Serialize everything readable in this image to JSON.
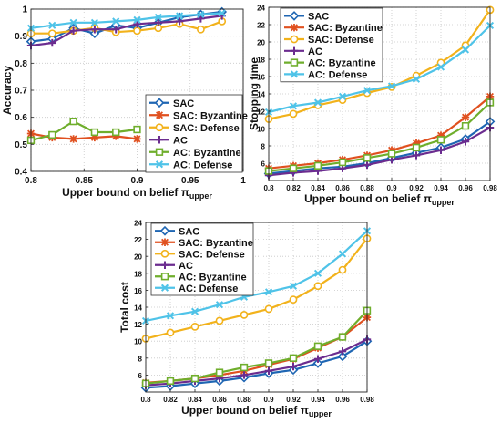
{
  "colors": {
    "SAC": "#1f66b3",
    "SAC: Byzantine": "#e0501f",
    "SAC: Defense": "#f2b21b",
    "AC": "#6b2c8f",
    "AC: Byzantine": "#6fae2c",
    "AC: Defense": "#4fc3e8"
  },
  "chart_data": [
    {
      "type": "line",
      "ylabel": "Accuracy",
      "xlabel": "Upper bound on belief π",
      "xlabel_sub": "upper",
      "xlim": [
        0.8,
        1.0
      ],
      "ylim": [
        0.4,
        1.0
      ],
      "xticks": [
        0.8,
        0.85,
        0.9,
        0.95,
        1.0
      ],
      "xtick_labels": [
        "0.8",
        "0.85",
        "0.9",
        "0.95",
        "1"
      ],
      "yticks": [
        0.4,
        0.5,
        0.6,
        0.7,
        0.8,
        0.9,
        1.0
      ],
      "ytick_labels": [
        "0.4",
        "0.5",
        "0.6",
        "0.7",
        "0.8",
        "0.9",
        "1"
      ],
      "grid": true,
      "legend": "bottom-right",
      "x": [
        0.8,
        0.82,
        0.84,
        0.86,
        0.88,
        0.9,
        0.92,
        0.94,
        0.96,
        0.98
      ],
      "series": [
        {
          "name": "SAC",
          "marker": "diamond",
          "values": [
            0.88,
            0.89,
            0.93,
            0.91,
            0.94,
            0.93,
            0.95,
            0.97,
            0.98,
            0.99
          ]
        },
        {
          "name": "SAC: Byzantine",
          "marker": "star",
          "values": [
            0.54,
            0.525,
            0.52,
            0.525,
            0.53,
            0.52,
            null,
            null,
            null,
            null
          ]
        },
        {
          "name": "SAC: Defense",
          "marker": "circle",
          "values": [
            0.91,
            0.91,
            0.92,
            0.93,
            0.915,
            0.92,
            0.93,
            0.945,
            0.925,
            0.955
          ]
        },
        {
          "name": "AC",
          "marker": "plus",
          "values": [
            0.865,
            0.875,
            0.92,
            0.925,
            0.925,
            0.945,
            0.95,
            0.955,
            0.965,
            0.975
          ]
        },
        {
          "name": "AC: Byzantine",
          "marker": "square",
          "values": [
            0.515,
            0.535,
            0.585,
            0.545,
            0.545,
            0.555,
            null,
            null,
            null,
            null
          ]
        },
        {
          "name": "AC: Defense",
          "marker": "x",
          "values": [
            0.93,
            0.94,
            0.95,
            0.95,
            0.955,
            0.96,
            0.97,
            0.975,
            0.98,
            0.985
          ]
        }
      ]
    },
    {
      "type": "line",
      "ylabel": "Stopping time",
      "xlabel": "Upper bound on belief π",
      "xlabel_sub": "upper",
      "xlim": [
        0.8,
        0.98
      ],
      "ylim": [
        4,
        24
      ],
      "xticks": [
        0.8,
        0.82,
        0.84,
        0.86,
        0.88,
        0.9,
        0.92,
        0.94,
        0.96,
        0.98
      ],
      "xtick_labels": [
        "0.8",
        "0.82",
        "0.84",
        "0.86",
        "0.88",
        "0.9",
        "0.92",
        "0.94",
        "0.96",
        "0.98"
      ],
      "yticks": [
        6,
        8,
        10,
        12,
        14,
        16,
        18,
        20,
        22,
        24
      ],
      "ytick_labels": [
        "6",
        "8",
        "10",
        "12",
        "14",
        "16",
        "18",
        "20",
        "22",
        "24"
      ],
      "grid": true,
      "legend": "top-left",
      "x": [
        0.8,
        0.82,
        0.84,
        0.86,
        0.88,
        0.9,
        0.92,
        0.94,
        0.96,
        0.98
      ],
      "series": [
        {
          "name": "SAC",
          "marker": "diamond",
          "values": [
            4.8,
            5.1,
            5.4,
            5.6,
            6.0,
            6.6,
            7.2,
            7.8,
            8.8,
            10.8
          ]
        },
        {
          "name": "SAC: Byzantine",
          "marker": "star",
          "values": [
            5.4,
            5.7,
            6.0,
            6.4,
            6.9,
            7.5,
            8.3,
            9.2,
            11.3,
            13.7
          ]
        },
        {
          "name": "SAC: Defense",
          "marker": "circle",
          "values": [
            11.1,
            11.7,
            12.7,
            13.3,
            14.1,
            14.8,
            16.1,
            17.6,
            19.6,
            23.7
          ]
        },
        {
          "name": "AC",
          "marker": "plus",
          "values": [
            4.6,
            4.9,
            5.1,
            5.4,
            5.8,
            6.4,
            6.9,
            7.5,
            8.5,
            10.1
          ]
        },
        {
          "name": "AC: Byzantine",
          "marker": "square",
          "values": [
            5.1,
            5.4,
            5.7,
            6.1,
            6.6,
            7.1,
            7.8,
            8.7,
            10.3,
            13.0
          ]
        },
        {
          "name": "AC: Defense",
          "marker": "x",
          "values": [
            11.9,
            12.6,
            13.0,
            13.7,
            14.4,
            14.9,
            15.7,
            17.1,
            19.1,
            21.9
          ]
        }
      ]
    },
    {
      "type": "line",
      "ylabel": "Total cost",
      "xlabel": "Upper bound on belief π",
      "xlabel_sub": "upper",
      "xlim": [
        0.8,
        0.98
      ],
      "ylim": [
        4,
        24
      ],
      "xticks": [
        0.8,
        0.82,
        0.84,
        0.86,
        0.88,
        0.9,
        0.92,
        0.94,
        0.96,
        0.98
      ],
      "xtick_labels": [
        "0.8",
        "0.82",
        "0.84",
        "0.86",
        "0.88",
        "0.9",
        "0.92",
        "0.94",
        "0.96",
        "0.98"
      ],
      "yticks": [
        6,
        8,
        10,
        12,
        14,
        16,
        18,
        20,
        22,
        24
      ],
      "ytick_labels": [
        "6",
        "8",
        "10",
        "12",
        "14",
        "16",
        "18",
        "20",
        "22",
        "24"
      ],
      "grid": true,
      "legend": "top-left",
      "x": [
        0.8,
        0.82,
        0.84,
        0.86,
        0.88,
        0.9,
        0.92,
        0.94,
        0.96,
        0.98
      ],
      "series": [
        {
          "name": "SAC",
          "marker": "diamond",
          "values": [
            4.5,
            4.7,
            5.0,
            5.3,
            5.7,
            6.2,
            6.6,
            7.4,
            8.2,
            10.0
          ]
        },
        {
          "name": "SAC: Byzantine",
          "marker": "star",
          "values": [
            5.1,
            5.3,
            5.6,
            6.0,
            6.5,
            7.2,
            7.9,
            9.2,
            10.5,
            12.8
          ]
        },
        {
          "name": "SAC: Defense",
          "marker": "circle",
          "values": [
            10.3,
            11.0,
            11.7,
            12.4,
            13.1,
            13.8,
            14.9,
            16.5,
            18.4,
            22.1
          ]
        },
        {
          "name": "AC",
          "marker": "plus",
          "values": [
            4.8,
            5.0,
            5.3,
            5.6,
            6.0,
            6.5,
            7.0,
            7.9,
            8.8,
            10.2
          ]
        },
        {
          "name": "AC: Byzantine",
          "marker": "square",
          "values": [
            5.0,
            5.3,
            5.6,
            6.3,
            6.9,
            7.4,
            8.0,
            9.4,
            10.5,
            13.6
          ]
        },
        {
          "name": "AC: Defense",
          "marker": "x",
          "values": [
            12.4,
            13.0,
            13.5,
            14.3,
            15.2,
            15.8,
            16.5,
            18.0,
            20.3,
            23.0
          ]
        }
      ]
    }
  ]
}
